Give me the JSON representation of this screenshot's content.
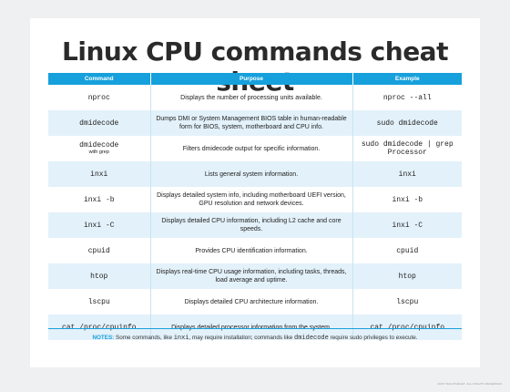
{
  "title": "Linux CPU commands cheat sheet",
  "columns": {
    "command": "Command",
    "purpose": "Purpose",
    "example": "Example"
  },
  "rows": [
    {
      "command": "nproc",
      "purpose": "Displays the number of processing units available.",
      "example": "nproc --all"
    },
    {
      "command": "dmidecode",
      "purpose": "Dumps DMI or System Management BIOS table in human-readable form for BIOS, system, motherboard and CPU info.",
      "example": "sudo dmidecode"
    },
    {
      "command": "dmidecode",
      "command_note": "with grep",
      "purpose": "Filters dmidecode output for specific information.",
      "example": "sudo dmidecode | grep Processor"
    },
    {
      "command": "inxi",
      "purpose": "Lists general system information.",
      "example": "inxi"
    },
    {
      "command": "inxi -b",
      "purpose": "Displays detailed system info, including motherboard UEFI version, GPU resolution and network devices.",
      "example": "inxi -b"
    },
    {
      "command": "inxi -C",
      "purpose": "Displays detailed CPU information, including L2 cache and core speeds.",
      "example": "inxi -C"
    },
    {
      "command": "cpuid",
      "purpose": "Provides CPU identification information.",
      "example": "cpuid"
    },
    {
      "command": "htop",
      "purpose": "Displays real-time CPU usage information, including tasks, threads, load average and uptime.",
      "example": "htop"
    },
    {
      "command": "lscpu",
      "purpose": "Displays detailed CPU architecture information.",
      "example": "lscpu"
    },
    {
      "command": "cat /proc/cpuinfo",
      "purpose": "Displays detailed processor information from the system.",
      "example": "cat /proc/cpuinfo"
    }
  ],
  "notes": {
    "label": "NOTES:",
    "text_1": "Some commands, like",
    "code_1": "inxi",
    "text_2": ", may require installation; commands like",
    "code_2": "dmidecode",
    "text_3": "require sudo privileges to execute."
  },
  "credit": "2025 TECHTARGET. ALL RIGHTS RESERVED.",
  "colors": {
    "header": "#16a0dc",
    "alt_row": "#e3f1fa",
    "background": "#eef0f2"
  }
}
